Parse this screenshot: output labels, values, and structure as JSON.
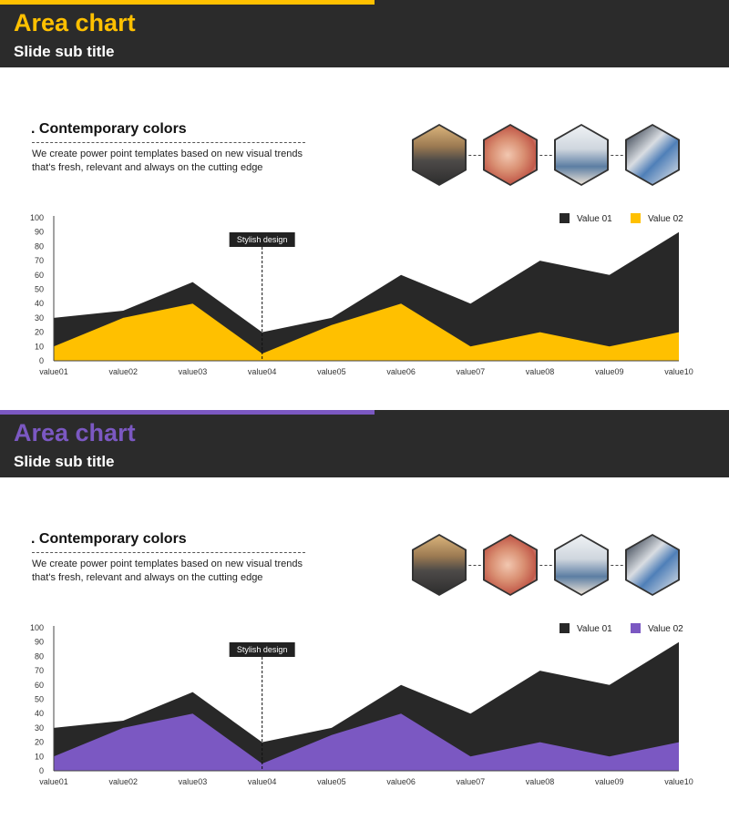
{
  "slides": [
    {
      "title": "Area chart",
      "subtitle": "Slide sub title",
      "accent_color": "#ffc000",
      "section_heading": ". Contemporary colors",
      "description_line1": "We create power point templates based on new visual  trends",
      "description_line2": "that's fresh,  relevant  and always on the cutting edge",
      "photos": [
        "city-skyline-image",
        "high-five-hands-image",
        "business-team-image",
        "workspace-desk-image"
      ],
      "chart_data": {
        "type": "area",
        "categories": [
          "value01",
          "value02",
          "value03",
          "value04",
          "value05",
          "value06",
          "value07",
          "value08",
          "value09",
          "value10"
        ],
        "series": [
          {
            "name": "Value 01",
            "color": "#282828",
            "values": [
              30,
              35,
              55,
              20,
              30,
              60,
              40,
              70,
              60,
              90
            ]
          },
          {
            "name": "Value 02",
            "color": "#ffc000",
            "values": [
              10,
              30,
              40,
              5,
              25,
              40,
              10,
              20,
              10,
              20
            ]
          }
        ],
        "ylim": [
          0,
          100
        ],
        "yticks": [
          0,
          10,
          20,
          30,
          40,
          50,
          60,
          70,
          80,
          90,
          100
        ],
        "annotation": {
          "text": "Stylish design",
          "category": "value04"
        },
        "legend": "top-right"
      }
    },
    {
      "title": "Area chart",
      "subtitle": "Slide sub title",
      "accent_color": "#7b58c2",
      "section_heading": ". Contemporary colors",
      "description_line1": "We create power point templates based on new visual  trends",
      "description_line2": "that's fresh,  relevant  and always on the cutting edge",
      "photos": [
        "city-skyline-image",
        "high-five-hands-image",
        "business-team-image",
        "workspace-desk-image"
      ],
      "chart_data": {
        "type": "area",
        "categories": [
          "value01",
          "value02",
          "value03",
          "value04",
          "value05",
          "value06",
          "value07",
          "value08",
          "value09",
          "value10"
        ],
        "series": [
          {
            "name": "Value 01",
            "color": "#282828",
            "values": [
              30,
              35,
              55,
              20,
              30,
              60,
              40,
              70,
              60,
              90
            ]
          },
          {
            "name": "Value 02",
            "color": "#7b58c2",
            "values": [
              10,
              30,
              40,
              5,
              25,
              40,
              10,
              20,
              10,
              20
            ]
          }
        ],
        "ylim": [
          0,
          100
        ],
        "yticks": [
          0,
          10,
          20,
          30,
          40,
          50,
          60,
          70,
          80,
          90,
          100
        ],
        "annotation": {
          "text": "Stylish design",
          "category": "value04"
        },
        "legend": "top-right"
      }
    }
  ]
}
